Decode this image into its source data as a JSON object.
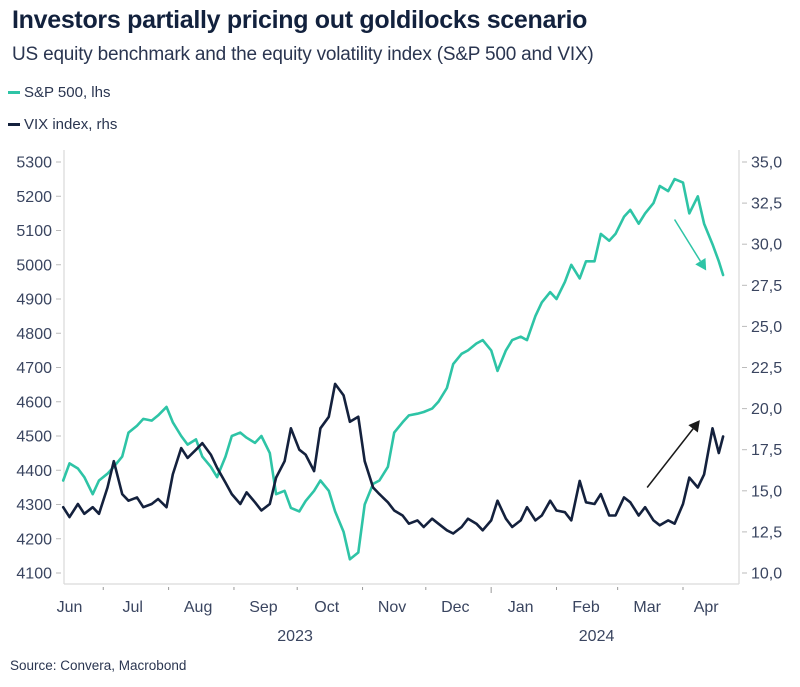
{
  "header": {
    "title": "Investors partially pricing out goldilocks scenario",
    "subtitle": "US equity benchmark and the equity volatility index (S&P 500 and VIX)"
  },
  "legend": [
    {
      "label": "S&P 500, lhs",
      "color": "#2ec4a6"
    },
    {
      "label": "VIX index, rhs",
      "color": "#14213d"
    }
  ],
  "source": "Source: Convera, Macrobond",
  "chart_data": {
    "type": "line",
    "title": "Investors partially pricing out goldilocks scenario",
    "subtitle": "US equity benchmark and the equity volatility index (S&P 500 and VIX)",
    "xlabel": "",
    "ylabel": "",
    "x_range": [
      "2023-06-01",
      "2024-04-25"
    ],
    "x_ticks": [
      {
        "label": "Jun",
        "date": "2023-06-15"
      },
      {
        "label": "Jul",
        "date": "2023-07-15"
      },
      {
        "label": "Aug",
        "date": "2023-08-15"
      },
      {
        "label": "Sep",
        "date": "2023-09-15"
      },
      {
        "label": "Oct",
        "date": "2023-10-15"
      },
      {
        "label": "Nov",
        "date": "2023-11-15"
      },
      {
        "label": "Dec",
        "date": "2023-12-15"
      },
      {
        "label": "Jan",
        "date": "2024-01-15"
      },
      {
        "label": "Feb",
        "date": "2024-02-15"
      },
      {
        "label": "Mar",
        "date": "2024-03-15"
      },
      {
        "label": "Apr",
        "date": "2024-04-12"
      }
    ],
    "month_boundaries": [
      "2023-07-01",
      "2023-08-01",
      "2023-09-01",
      "2023-10-01",
      "2023-11-01",
      "2023-12-01",
      "2024-01-01",
      "2024-02-01",
      "2024-03-01",
      "2024-04-01"
    ],
    "year_labels": [
      {
        "label": "2023",
        "date": "2023-09-30"
      },
      {
        "label": "2024",
        "date": "2024-02-20"
      }
    ],
    "year_boundary": "2024-01-01",
    "y_left": {
      "label": "S&P 500",
      "range": [
        4070,
        5335
      ],
      "ticks": [
        4100,
        4200,
        4300,
        4400,
        4500,
        4600,
        4700,
        4800,
        4900,
        5000,
        5100,
        5200,
        5300
      ]
    },
    "y_right": {
      "label": "VIX",
      "range": [
        9.5,
        35.9
      ],
      "ticks": [
        "10,0",
        "12,5",
        "15,0",
        "17,5",
        "20,0",
        "22,5",
        "25,0",
        "27,5",
        "30,0",
        "32,5",
        "35,0"
      ],
      "tick_values": [
        10,
        12.5,
        15,
        17.5,
        20,
        22.5,
        25,
        27.5,
        30,
        32.5,
        35
      ]
    },
    "legend_position": "top-left",
    "grid": false,
    "series": [
      {
        "name": "S&P 500, lhs",
        "axis": "left",
        "color": "#2ec4a6",
        "points": [
          [
            "2023-06-12",
            4370
          ],
          [
            "2023-06-15",
            4420
          ],
          [
            "2023-06-19",
            4405
          ],
          [
            "2023-06-22",
            4380
          ],
          [
            "2023-06-26",
            4330
          ],
          [
            "2023-06-29",
            4370
          ],
          [
            "2023-07-03",
            4390
          ],
          [
            "2023-07-06",
            4410
          ],
          [
            "2023-07-10",
            4440
          ],
          [
            "2023-07-13",
            4510
          ],
          [
            "2023-07-17",
            4530
          ],
          [
            "2023-07-20",
            4550
          ],
          [
            "2023-07-24",
            4545
          ],
          [
            "2023-07-27",
            4560
          ],
          [
            "2023-07-31",
            4585
          ],
          [
            "2023-08-03",
            4540
          ],
          [
            "2023-08-07",
            4500
          ],
          [
            "2023-08-10",
            4475
          ],
          [
            "2023-08-14",
            4490
          ],
          [
            "2023-08-17",
            4440
          ],
          [
            "2023-08-21",
            4410
          ],
          [
            "2023-08-24",
            4380
          ],
          [
            "2023-08-28",
            4440
          ],
          [
            "2023-08-31",
            4500
          ],
          [
            "2023-09-04",
            4510
          ],
          [
            "2023-09-07",
            4495
          ],
          [
            "2023-09-11",
            4480
          ],
          [
            "2023-09-14",
            4500
          ],
          [
            "2023-09-18",
            4450
          ],
          [
            "2023-09-21",
            4330
          ],
          [
            "2023-09-25",
            4340
          ],
          [
            "2023-09-28",
            4290
          ],
          [
            "2023-10-02",
            4280
          ],
          [
            "2023-10-05",
            4310
          ],
          [
            "2023-10-09",
            4340
          ],
          [
            "2023-10-12",
            4370
          ],
          [
            "2023-10-16",
            4340
          ],
          [
            "2023-10-19",
            4280
          ],
          [
            "2023-10-23",
            4220
          ],
          [
            "2023-10-26",
            4140
          ],
          [
            "2023-10-30",
            4160
          ],
          [
            "2023-11-02",
            4300
          ],
          [
            "2023-11-06",
            4360
          ],
          [
            "2023-11-09",
            4370
          ],
          [
            "2023-11-13",
            4410
          ],
          [
            "2023-11-16",
            4510
          ],
          [
            "2023-11-20",
            4540
          ],
          [
            "2023-11-23",
            4560
          ],
          [
            "2023-11-27",
            4565
          ],
          [
            "2023-11-30",
            4570
          ],
          [
            "2023-12-04",
            4580
          ],
          [
            "2023-12-07",
            4600
          ],
          [
            "2023-12-11",
            4640
          ],
          [
            "2023-12-14",
            4710
          ],
          [
            "2023-12-18",
            4740
          ],
          [
            "2023-12-21",
            4750
          ],
          [
            "2023-12-25",
            4770
          ],
          [
            "2023-12-28",
            4780
          ],
          [
            "2024-01-01",
            4750
          ],
          [
            "2024-01-04",
            4690
          ],
          [
            "2024-01-08",
            4750
          ],
          [
            "2024-01-11",
            4780
          ],
          [
            "2024-01-15",
            4790
          ],
          [
            "2024-01-18",
            4780
          ],
          [
            "2024-01-22",
            4850
          ],
          [
            "2024-01-25",
            4890
          ],
          [
            "2024-01-29",
            4920
          ],
          [
            "2024-02-01",
            4900
          ],
          [
            "2024-02-05",
            4950
          ],
          [
            "2024-02-08",
            5000
          ],
          [
            "2024-02-12",
            4960
          ],
          [
            "2024-02-15",
            5010
          ],
          [
            "2024-02-19",
            5010
          ],
          [
            "2024-02-22",
            5090
          ],
          [
            "2024-02-26",
            5070
          ],
          [
            "2024-02-29",
            5090
          ],
          [
            "2024-03-04",
            5140
          ],
          [
            "2024-03-07",
            5160
          ],
          [
            "2024-03-11",
            5120
          ],
          [
            "2024-03-14",
            5150
          ],
          [
            "2024-03-18",
            5180
          ],
          [
            "2024-03-21",
            5230
          ],
          [
            "2024-03-25",
            5215
          ],
          [
            "2024-03-28",
            5250
          ],
          [
            "2024-04-01",
            5240
          ],
          [
            "2024-04-04",
            5150
          ],
          [
            "2024-04-08",
            5200
          ],
          [
            "2024-04-11",
            5120
          ],
          [
            "2024-04-15",
            5060
          ],
          [
            "2024-04-18",
            5010
          ],
          [
            "2024-04-20",
            4970
          ]
        ]
      },
      {
        "name": "VIX index, rhs",
        "axis": "right",
        "color": "#14213d",
        "points": [
          [
            "2023-06-12",
            14.0
          ],
          [
            "2023-06-15",
            13.4
          ],
          [
            "2023-06-19",
            14.2
          ],
          [
            "2023-06-22",
            13.6
          ],
          [
            "2023-06-26",
            14.0
          ],
          [
            "2023-06-29",
            13.6
          ],
          [
            "2023-07-03",
            15.2
          ],
          [
            "2023-07-06",
            16.8
          ],
          [
            "2023-07-10",
            14.8
          ],
          [
            "2023-07-13",
            14.4
          ],
          [
            "2023-07-17",
            14.6
          ],
          [
            "2023-07-20",
            14.0
          ],
          [
            "2023-07-24",
            14.2
          ],
          [
            "2023-07-27",
            14.5
          ],
          [
            "2023-07-31",
            14.0
          ],
          [
            "2023-08-03",
            16.0
          ],
          [
            "2023-08-07",
            17.6
          ],
          [
            "2023-08-10",
            17.0
          ],
          [
            "2023-08-14",
            17.5
          ],
          [
            "2023-08-17",
            17.9
          ],
          [
            "2023-08-21",
            17.2
          ],
          [
            "2023-08-24",
            16.4
          ],
          [
            "2023-08-28",
            15.5
          ],
          [
            "2023-08-31",
            14.8
          ],
          [
            "2023-09-04",
            14.2
          ],
          [
            "2023-09-07",
            14.9
          ],
          [
            "2023-09-11",
            14.3
          ],
          [
            "2023-09-14",
            13.8
          ],
          [
            "2023-09-18",
            14.2
          ],
          [
            "2023-09-21",
            15.8
          ],
          [
            "2023-09-25",
            16.8
          ],
          [
            "2023-09-28",
            18.8
          ],
          [
            "2023-10-02",
            17.5
          ],
          [
            "2023-10-05",
            17.2
          ],
          [
            "2023-10-09",
            16.2
          ],
          [
            "2023-10-12",
            18.8
          ],
          [
            "2023-10-16",
            19.5
          ],
          [
            "2023-10-19",
            21.5
          ],
          [
            "2023-10-23",
            20.8
          ],
          [
            "2023-10-26",
            19.2
          ],
          [
            "2023-10-30",
            19.5
          ],
          [
            "2023-11-02",
            16.8
          ],
          [
            "2023-11-06",
            15.2
          ],
          [
            "2023-11-09",
            14.8
          ],
          [
            "2023-11-13",
            14.3
          ],
          [
            "2023-11-16",
            13.8
          ],
          [
            "2023-11-20",
            13.5
          ],
          [
            "2023-11-23",
            13.0
          ],
          [
            "2023-11-27",
            13.2
          ],
          [
            "2023-11-30",
            12.8
          ],
          [
            "2023-12-04",
            13.3
          ],
          [
            "2023-12-07",
            13.0
          ],
          [
            "2023-12-11",
            12.6
          ],
          [
            "2023-12-14",
            12.4
          ],
          [
            "2023-12-18",
            12.8
          ],
          [
            "2023-12-21",
            13.3
          ],
          [
            "2023-12-25",
            13.0
          ],
          [
            "2023-12-28",
            12.6
          ],
          [
            "2024-01-01",
            13.2
          ],
          [
            "2024-01-04",
            14.4
          ],
          [
            "2024-01-08",
            13.3
          ],
          [
            "2024-01-11",
            12.8
          ],
          [
            "2024-01-15",
            13.2
          ],
          [
            "2024-01-18",
            14.0
          ],
          [
            "2024-01-22",
            13.2
          ],
          [
            "2024-01-25",
            13.5
          ],
          [
            "2024-01-29",
            14.4
          ],
          [
            "2024-02-01",
            13.8
          ],
          [
            "2024-02-05",
            13.7
          ],
          [
            "2024-02-08",
            13.2
          ],
          [
            "2024-02-12",
            15.6
          ],
          [
            "2024-02-15",
            14.3
          ],
          [
            "2024-02-19",
            14.2
          ],
          [
            "2024-02-22",
            14.8
          ],
          [
            "2024-02-26",
            13.5
          ],
          [
            "2024-02-29",
            13.5
          ],
          [
            "2024-03-04",
            14.6
          ],
          [
            "2024-03-07",
            14.3
          ],
          [
            "2024-03-11",
            13.5
          ],
          [
            "2024-03-14",
            14.0
          ],
          [
            "2024-03-18",
            13.2
          ],
          [
            "2024-03-21",
            12.9
          ],
          [
            "2024-03-25",
            13.2
          ],
          [
            "2024-03-28",
            13.0
          ],
          [
            "2024-04-01",
            14.2
          ],
          [
            "2024-04-04",
            15.8
          ],
          [
            "2024-04-08",
            15.2
          ],
          [
            "2024-04-11",
            16.0
          ],
          [
            "2024-04-15",
            18.8
          ],
          [
            "2024-04-18",
            17.3
          ],
          [
            "2024-04-20",
            18.3
          ]
        ]
      }
    ],
    "annotations": [
      {
        "type": "arrow",
        "color": "#2ec4a6",
        "from": [
          "2024-03-28",
          31.5
        ],
        "to": [
          "2024-04-12",
          28.4
        ],
        "axis": "right",
        "meaning": "S&P 500 falling"
      },
      {
        "type": "arrow",
        "color": "#1a1a1a",
        "from": [
          "2024-03-15",
          15.2
        ],
        "to": [
          "2024-04-09",
          19.3
        ],
        "axis": "right",
        "meaning": "VIX rising"
      }
    ]
  }
}
